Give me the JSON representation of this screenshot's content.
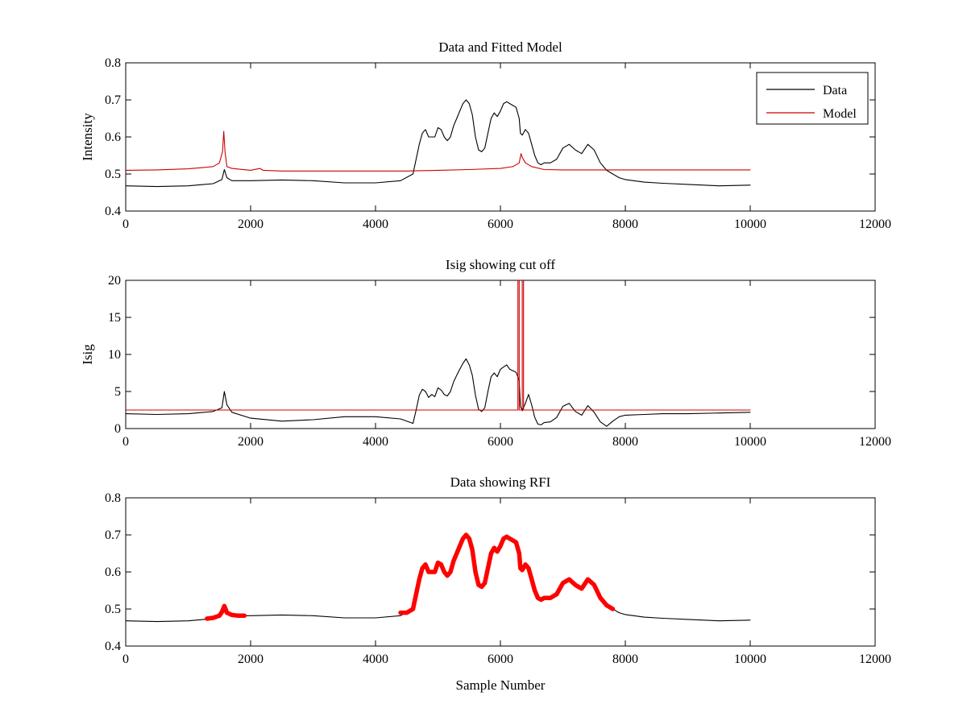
{
  "chart_data": [
    {
      "type": "line",
      "title": "Data and Fitted Model",
      "xlabel": "",
      "ylabel": "Intensity",
      "xlim": [
        0,
        12000
      ],
      "ylim": [
        0.4,
        0.8
      ],
      "xticks": [
        "0",
        "2000",
        "4000",
        "6000",
        "8000",
        "10000",
        "12000"
      ],
      "yticks": [
        "0.4",
        "0.5",
        "0.6",
        "0.7",
        "0.8"
      ],
      "grid": false,
      "legend": "top-right",
      "series": [
        {
          "name": "Data",
          "color": "#000000",
          "x": [
            0,
            500,
            1000,
            1400,
            1540,
            1580,
            1620,
            1700,
            2000,
            2500,
            3000,
            3500,
            4000,
            4400,
            4600,
            4650,
            4700,
            4750,
            4800,
            4850,
            4900,
            4950,
            5000,
            5050,
            5100,
            5150,
            5200,
            5250,
            5300,
            5350,
            5400,
            5450,
            5500,
            5550,
            5600,
            5650,
            5700,
            5750,
            5800,
            5850,
            5900,
            5950,
            6000,
            6050,
            6100,
            6150,
            6200,
            6250,
            6300,
            6320,
            6350,
            6400,
            6450,
            6500,
            6550,
            6600,
            6650,
            6700,
            6800,
            6900,
            7000,
            7100,
            7200,
            7300,
            7400,
            7500,
            7600,
            7700,
            7800,
            7900,
            8000,
            8300,
            8600,
            9000,
            9500,
            10000
          ],
          "y": [
            0.468,
            0.466,
            0.468,
            0.474,
            0.485,
            0.512,
            0.49,
            0.482,
            0.482,
            0.484,
            0.482,
            0.476,
            0.476,
            0.482,
            0.5,
            0.54,
            0.58,
            0.61,
            0.62,
            0.6,
            0.6,
            0.6,
            0.625,
            0.62,
            0.6,
            0.59,
            0.6,
            0.63,
            0.65,
            0.67,
            0.69,
            0.7,
            0.69,
            0.66,
            0.6,
            0.565,
            0.56,
            0.57,
            0.61,
            0.65,
            0.665,
            0.655,
            0.67,
            0.69,
            0.695,
            0.69,
            0.685,
            0.68,
            0.65,
            0.61,
            0.605,
            0.62,
            0.61,
            0.58,
            0.55,
            0.53,
            0.525,
            0.53,
            0.53,
            0.54,
            0.57,
            0.58,
            0.565,
            0.555,
            0.58,
            0.565,
            0.53,
            0.51,
            0.5,
            0.49,
            0.485,
            0.478,
            0.475,
            0.472,
            0.468,
            0.47
          ]
        },
        {
          "name": "Model",
          "color": "#cc0000",
          "x": [
            0,
            500,
            1000,
            1400,
            1500,
            1550,
            1570,
            1590,
            1620,
            1700,
            2000,
            2150,
            2200,
            2500,
            3000,
            4000,
            4500,
            5000,
            5500,
            6000,
            6200,
            6300,
            6330,
            6350,
            6400,
            6500,
            6700,
            7000,
            7500,
            8000,
            9000,
            10000
          ],
          "y": [
            0.51,
            0.511,
            0.514,
            0.52,
            0.53,
            0.56,
            0.615,
            0.56,
            0.52,
            0.515,
            0.51,
            0.515,
            0.51,
            0.508,
            0.508,
            0.508,
            0.508,
            0.51,
            0.512,
            0.515,
            0.52,
            0.53,
            0.555,
            0.545,
            0.53,
            0.52,
            0.512,
            0.511,
            0.511,
            0.511,
            0.511,
            0.511
          ]
        }
      ]
    },
    {
      "type": "line",
      "title": "Isig showing cut off",
      "xlabel": "",
      "ylabel": "Isig",
      "xlim": [
        0,
        12000
      ],
      "ylim": [
        0,
        20
      ],
      "xticks": [
        "0",
        "2000",
        "4000",
        "6000",
        "8000",
        "10000",
        "12000"
      ],
      "yticks": [
        "0",
        "5",
        "10",
        "15",
        "20"
      ],
      "grid": false,
      "series": [
        {
          "color": "#000000",
          "x": [
            0,
            500,
            1000,
            1400,
            1540,
            1580,
            1620,
            1700,
            2000,
            2500,
            3000,
            3500,
            4000,
            4400,
            4600,
            4650,
            4700,
            4750,
            4800,
            4850,
            4900,
            4950,
            5000,
            5050,
            5100,
            5150,
            5200,
            5250,
            5300,
            5350,
            5400,
            5450,
            5500,
            5550,
            5600,
            5650,
            5700,
            5750,
            5800,
            5850,
            5900,
            5950,
            6000,
            6050,
            6100,
            6150,
            6200,
            6250,
            6300,
            6320,
            6350,
            6400,
            6450,
            6500,
            6550,
            6600,
            6650,
            6700,
            6800,
            6900,
            7000,
            7100,
            7200,
            7300,
            7400,
            7500,
            7600,
            7700,
            7800,
            7900,
            8000,
            8300,
            8600,
            9000,
            9500,
            10000
          ],
          "y": [
            2.0,
            1.9,
            2.0,
            2.3,
            2.8,
            5.0,
            3.2,
            2.2,
            1.4,
            1.0,
            1.2,
            1.6,
            1.6,
            1.3,
            0.7,
            2.5,
            4.5,
            5.3,
            5.0,
            4.2,
            4.6,
            4.3,
            5.5,
            5.2,
            4.6,
            4.4,
            5.0,
            6.3,
            7.2,
            8.0,
            8.8,
            9.4,
            8.6,
            7.2,
            4.5,
            2.6,
            2.3,
            2.8,
            5.0,
            7.0,
            7.5,
            7.0,
            8.0,
            8.3,
            8.6,
            8.0,
            7.8,
            7.6,
            6.5,
            3.0,
            2.4,
            3.4,
            4.6,
            3.2,
            1.5,
            0.6,
            0.5,
            0.8,
            0.9,
            1.5,
            3.0,
            3.4,
            2.3,
            1.8,
            3.1,
            2.2,
            0.9,
            0.3,
            1.0,
            1.6,
            1.8,
            1.9,
            2.0,
            2.0,
            2.1,
            2.2
          ]
        },
        {
          "color": "#cc0000",
          "x": [
            0,
            6280,
            6280,
            6300,
            6300,
            6350,
            6350,
            6370,
            6370,
            10000
          ],
          "y": [
            2.5,
            2.5,
            20,
            20,
            2.5,
            2.5,
            20,
            20,
            2.5,
            2.5
          ]
        }
      ]
    },
    {
      "type": "line",
      "title": "Data showing RFI",
      "xlabel": "Sample Number",
      "ylabel": "",
      "xlim": [
        0,
        12000
      ],
      "ylim": [
        0.4,
        0.8
      ],
      "xticks": [
        "0",
        "2000",
        "4000",
        "6000",
        "8000",
        "10000",
        "12000"
      ],
      "yticks": [
        "0.4",
        "0.5",
        "0.6",
        "0.7",
        "0.8"
      ],
      "grid": false,
      "series": [
        {
          "color": "#000000",
          "x": [
            0,
            500,
            1000,
            1400,
            1540,
            1580,
            1620,
            1700,
            2000,
            2500,
            3000,
            3500,
            4000,
            4400,
            4600,
            4650,
            4700,
            4750,
            4800,
            4850,
            4900,
            4950,
            5000,
            5050,
            5100,
            5150,
            5200,
            5250,
            5300,
            5350,
            5400,
            5450,
            5500,
            5550,
            5600,
            5650,
            5700,
            5750,
            5800,
            5850,
            5900,
            5950,
            6000,
            6050,
            6100,
            6150,
            6200,
            6250,
            6300,
            6320,
            6350,
            6400,
            6450,
            6500,
            6550,
            6600,
            6650,
            6700,
            6800,
            6900,
            7000,
            7100,
            7200,
            7300,
            7400,
            7500,
            7600,
            7700,
            7800,
            7900,
            8000,
            8300,
            8600,
            9000,
            9500,
            10000
          ],
          "y": [
            0.468,
            0.466,
            0.468,
            0.474,
            0.485,
            0.512,
            0.49,
            0.482,
            0.482,
            0.484,
            0.482,
            0.476,
            0.476,
            0.482,
            0.5,
            0.54,
            0.58,
            0.61,
            0.62,
            0.6,
            0.6,
            0.6,
            0.625,
            0.62,
            0.6,
            0.59,
            0.6,
            0.63,
            0.65,
            0.67,
            0.69,
            0.7,
            0.69,
            0.66,
            0.6,
            0.565,
            0.56,
            0.57,
            0.61,
            0.65,
            0.665,
            0.655,
            0.67,
            0.69,
            0.695,
            0.69,
            0.685,
            0.68,
            0.65,
            0.61,
            0.605,
            0.62,
            0.61,
            0.58,
            0.55,
            0.53,
            0.525,
            0.53,
            0.53,
            0.54,
            0.57,
            0.58,
            0.565,
            0.555,
            0.58,
            0.565,
            0.53,
            0.51,
            0.5,
            0.49,
            0.485,
            0.478,
            0.475,
            0.472,
            0.468,
            0.47
          ]
        },
        {
          "color": "#ff0000",
          "segments": [
            {
              "x": [
                1300,
                1400,
                1500,
                1540,
                1580,
                1620,
                1700,
                1800,
                1900
              ],
              "y": [
                0.474,
                0.476,
                0.482,
                0.492,
                0.508,
                0.49,
                0.484,
                0.482,
                0.482
              ]
            },
            {
              "x": [
                4400,
                4500,
                4600,
                4650,
                4700,
                4750,
                4800,
                4850,
                4900,
                4950,
                5000,
                5050,
                5100,
                5150,
                5200,
                5250,
                5300,
                5350,
                5400,
                5450,
                5500,
                5550,
                5600,
                5650,
                5700,
                5750,
                5800,
                5850,
                5900,
                5950,
                6000,
                6050,
                6100,
                6150,
                6200,
                6250,
                6300,
                6320,
                6350,
                6400,
                6450,
                6500,
                6550,
                6600,
                6650,
                6700,
                6800,
                6900,
                7000,
                7100,
                7200,
                7300,
                7400,
                7500,
                7600,
                7700,
                7800
              ],
              "y": [
                0.49,
                0.49,
                0.5,
                0.54,
                0.58,
                0.61,
                0.62,
                0.6,
                0.6,
                0.6,
                0.625,
                0.62,
                0.6,
                0.59,
                0.6,
                0.63,
                0.65,
                0.67,
                0.69,
                0.7,
                0.69,
                0.66,
                0.6,
                0.565,
                0.56,
                0.57,
                0.61,
                0.65,
                0.665,
                0.655,
                0.67,
                0.69,
                0.695,
                0.69,
                0.685,
                0.68,
                0.65,
                0.61,
                0.605,
                0.62,
                0.61,
                0.58,
                0.55,
                0.53,
                0.525,
                0.53,
                0.53,
                0.54,
                0.57,
                0.58,
                0.565,
                0.555,
                0.58,
                0.565,
                0.53,
                0.51,
                0.5
              ]
            }
          ]
        }
      ]
    }
  ]
}
